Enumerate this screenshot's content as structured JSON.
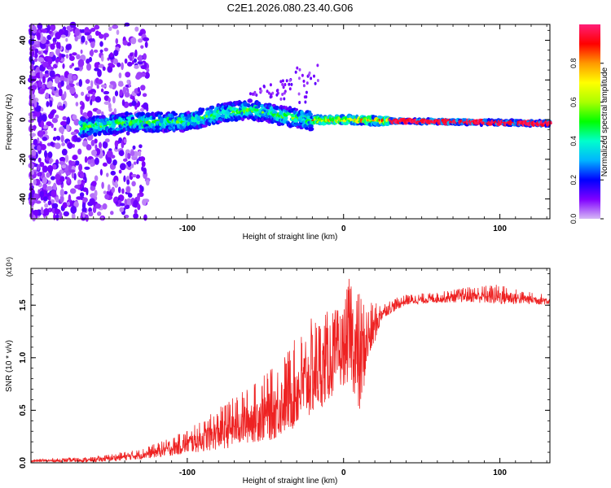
{
  "title": "C2E1.2026.080.23.40.G06",
  "chart_data": [
    {
      "type": "heatmap",
      "xlabel": "Height of straight line (km)",
      "ylabel": "Frequency (Hz)",
      "xlim": [
        -200,
        132
      ],
      "ylim": [
        -50,
        48
      ],
      "xticks": [
        -100,
        0,
        100
      ],
      "yticks": [
        -40,
        -20,
        0,
        20,
        40
      ],
      "colorbar": {
        "label": "Normalized spectral amplitude",
        "range": [
          0,
          1
        ],
        "ticks": [
          0.0,
          0.2,
          0.4,
          0.6,
          0.8
        ],
        "colors": [
          "#d6b8f5",
          "#8000ff",
          "#0000ff",
          "#00b4ff",
          "#00ffcc",
          "#00ff00",
          "#aaff00",
          "#ffff00",
          "#ff9900",
          "#ff0000",
          "#ff1e78"
        ]
      },
      "trace": [
        {
          "x": -165,
          "f": -4.0
        },
        {
          "x": -140,
          "f": -1.5
        },
        {
          "x": -100,
          "f": -1.0
        },
        {
          "x": -80,
          "f": 3.0
        },
        {
          "x": -60,
          "f": 5.0
        },
        {
          "x": -40,
          "f": 2.0
        },
        {
          "x": -20,
          "f": -0.5
        },
        {
          "x": 0,
          "f": 0.0
        },
        {
          "x": 20,
          "f": -0.5
        },
        {
          "x": 60,
          "f": -1.0
        },
        {
          "x": 100,
          "f": -1.5
        },
        {
          "x": 132,
          "f": -2.0
        }
      ]
    },
    {
      "type": "line",
      "xlabel": "Height of straight line (km)",
      "ylabel": "SNR (10 * v/v)",
      "yscale_label": "(x10⁴)",
      "xlim": [
        -200,
        132
      ],
      "ylim": [
        0,
        1.85
      ],
      "xticks": [
        -100,
        0,
        100
      ],
      "yticks": [
        0.0,
        0.5,
        1.0,
        1.5
      ],
      "color": "#ee2222",
      "series": [
        {
          "name": "SNR",
          "x": [
            -200,
            -160,
            -130,
            -110,
            -90,
            -75,
            -60,
            -45,
            -30,
            -20,
            -10,
            0,
            5,
            10,
            15,
            25,
            40,
            60,
            80,
            100,
            115,
            132
          ],
          "y": [
            0.02,
            0.03,
            0.08,
            0.15,
            0.25,
            0.35,
            0.45,
            0.55,
            0.75,
            0.9,
            1.0,
            1.1,
            1.3,
            1.0,
            1.2,
            1.45,
            1.55,
            1.57,
            1.6,
            1.6,
            1.57,
            1.55
          ],
          "noise": [
            0.01,
            0.02,
            0.04,
            0.07,
            0.12,
            0.18,
            0.22,
            0.28,
            0.35,
            0.38,
            0.35,
            0.3,
            0.45,
            0.5,
            0.25,
            0.06,
            0.04,
            0.04,
            0.06,
            0.08,
            0.05,
            0.04
          ]
        }
      ]
    }
  ]
}
